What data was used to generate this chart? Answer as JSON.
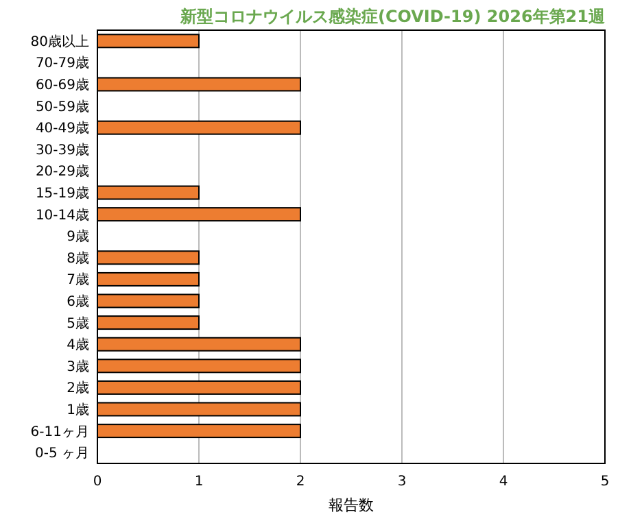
{
  "chart_data": {
    "type": "bar",
    "orientation": "horizontal",
    "title": "新型コロナウイルス感染症(COVID-19) 2026年第21週",
    "xlabel": "報告数",
    "categories": [
      "80歳以上",
      "70-79歳",
      "60-69歳",
      "50-59歳",
      "40-49歳",
      "30-39歳",
      "20-29歳",
      "15-19歳",
      "10-14歳",
      "9歳",
      "8歳",
      "7歳",
      "6歳",
      "5歳",
      "4歳",
      "3歳",
      "2歳",
      "1歳",
      "6-11ヶ月",
      "0-5 ヶ月"
    ],
    "values": [
      1,
      0,
      2,
      0,
      2,
      0,
      0,
      1,
      2,
      0,
      1,
      1,
      1,
      1,
      2,
      2,
      2,
      2,
      2,
      0
    ],
    "color": "#ed7d31",
    "xlim": [
      0,
      5
    ],
    "xticks": [
      0,
      1,
      2,
      3,
      4,
      5
    ],
    "grid": "x"
  }
}
